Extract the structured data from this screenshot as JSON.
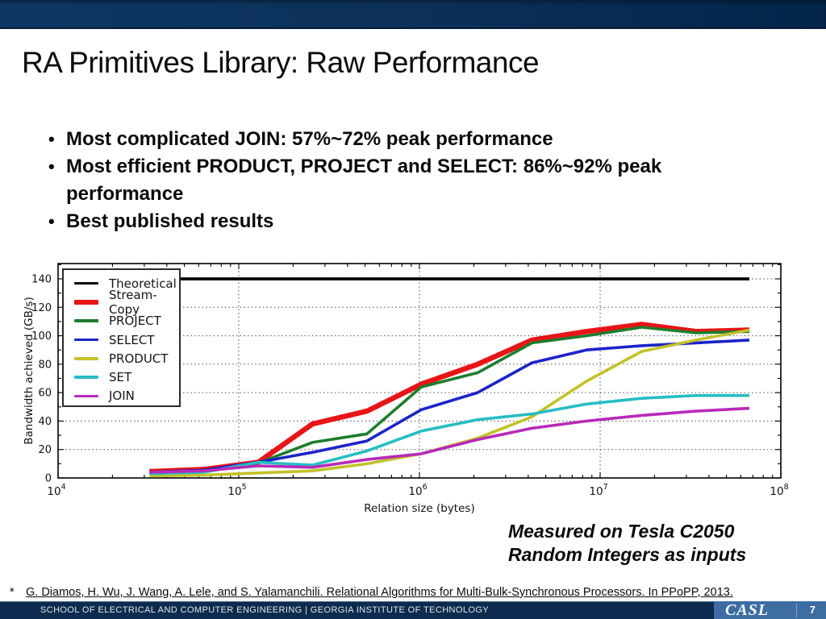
{
  "slide": {
    "title": "RA Primitives Library: Raw Performance",
    "bullet_glyph": "•",
    "bullets": [
      {
        "text": "Most complicated JOIN: 57%~72% peak performance"
      },
      {
        "text": "Most efficient PRODUCT, PROJECT and SELECT: 86%~92% peak"
      },
      {
        "text": "performance",
        "continuation": true
      },
      {
        "text": "Best published results"
      }
    ],
    "note_line1": "Measured on Tesla C2050",
    "note_line2": "Random Integers as inputs",
    "footnote_marker": "*",
    "footnote": "G. Diamos, H. Wu, J. Wang, A. Lele, and S. Yalamanchili. Relational Algorithms for Multi-Bulk-Synchronous Processors. In PPoPP, 2013.",
    "footer": {
      "text": "SCHOOL OF ELECTRICAL AND COMPUTER ENGINEERING | GEORGIA INSTITUTE OF TECHNOLOGY",
      "logo": "CASL",
      "page_number": "7",
      "bar_color": "#0d2b4e",
      "logo_box_color": "#3d6da3"
    },
    "header_band_colors": [
      "#0f3765",
      "#03254a"
    ]
  },
  "chart_data": {
    "type": "line",
    "title": "",
    "xlabel": "Relation size (bytes)",
    "ylabel": "Bandwidth achieved (GB/s)",
    "x_scale": "log",
    "xlim": [
      10000,
      100000000
    ],
    "ylim": [
      0,
      150
    ],
    "grid": true,
    "grid_style": "dotted",
    "x_ticks": [
      "10^4",
      "10^5",
      "10^6",
      "10^7",
      "10^8"
    ],
    "y_ticks": [
      0,
      20,
      40,
      60,
      80,
      100,
      120,
      140
    ],
    "legend_position": "upper-left",
    "x": [
      32000,
      64000,
      128000,
      256000,
      512000,
      1024000,
      2100000,
      4200000,
      8400000,
      17000000,
      34000000,
      67000000
    ],
    "series": [
      {
        "name": "Theoretical",
        "color": "#000000",
        "width": 3.8,
        "values": [
          140,
          140,
          140,
          140,
          140,
          140,
          140,
          140,
          140,
          140,
          140,
          140
        ]
      },
      {
        "name": "Stream-Copy",
        "color": "#e81417",
        "width": 6.5,
        "values": [
          4.5,
          6,
          11,
          38,
          47,
          66,
          80,
          97,
          103,
          108,
          103,
          104
        ]
      },
      {
        "name": "PROJECT",
        "color": "#1e7d2c",
        "width": 3.6,
        "values": [
          3.5,
          5,
          10.5,
          25,
          31,
          64,
          74,
          95,
          100,
          106,
          102,
          103
        ]
      },
      {
        "name": "SELECT",
        "color": "#1c24c8",
        "width": 3.6,
        "values": [
          4,
          5.5,
          11,
          18,
          26,
          48,
          60,
          81,
          90,
          93,
          95,
          97
        ]
      },
      {
        "name": "PRODUCT",
        "color": "#c2c22a",
        "width": 3.6,
        "values": [
          1.5,
          2,
          3.5,
          5,
          10,
          17,
          28,
          43,
          68,
          89,
          97,
          104
        ]
      },
      {
        "name": "SET",
        "color": "#27bdc4",
        "width": 3.6,
        "values": [
          3,
          4,
          11,
          9,
          19,
          33,
          41,
          45,
          52,
          56,
          58,
          58
        ]
      },
      {
        "name": "JOIN",
        "color": "#b82ab8",
        "width": 3.6,
        "values": [
          4,
          5,
          8.5,
          7.5,
          13,
          17,
          27,
          35,
          40,
          44,
          47,
          49
        ]
      }
    ]
  }
}
